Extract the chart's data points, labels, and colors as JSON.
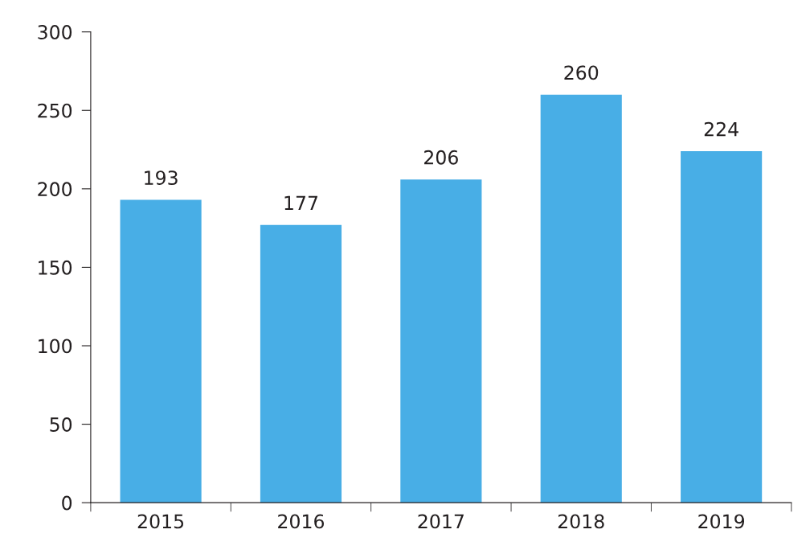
{
  "chart_data": {
    "type": "bar",
    "categories": [
      "2015",
      "2016",
      "2017",
      "2018",
      "2019"
    ],
    "values": [
      193,
      177,
      206,
      260,
      224
    ],
    "color": "#48aee6",
    "ylim": [
      0,
      300
    ],
    "yticks": [
      0,
      50,
      100,
      150,
      200,
      250,
      300
    ],
    "data_labels": true,
    "grid": false
  }
}
